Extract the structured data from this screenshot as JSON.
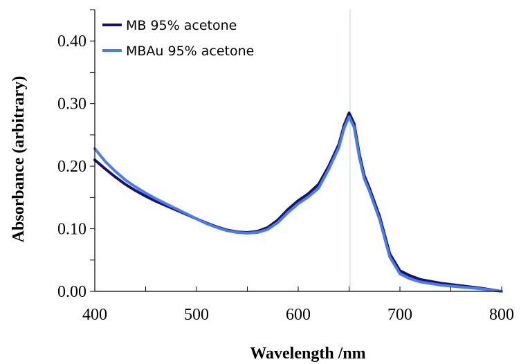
{
  "chart_data": {
    "type": "line",
    "xlabel": "Wavelength /nm",
    "ylabel": "Absorbance (arbitrary)",
    "xlim": [
      400,
      800
    ],
    "ylim": [
      0,
      0.45
    ],
    "x_ticks": [
      400,
      500,
      600,
      700,
      800
    ],
    "x_tick_labels": [
      "400",
      "500",
      "600",
      "700",
      "800"
    ],
    "y_ticks": [
      0,
      0.1,
      0.2,
      0.3,
      0.4
    ],
    "y_tick_labels": [
      "0.00",
      "0.10",
      "0.20",
      "0.30",
      "0.40"
    ],
    "x_minor_step": 50,
    "y_minor_step": 0.05,
    "grid": false,
    "legend_position": "top-left",
    "reference_line": {
      "x": 651,
      "color": "#b8d4e3"
    },
    "series": [
      {
        "name": "MB 95% acetone",
        "color": "#14146e",
        "x": [
          400,
          410,
          420,
          430,
          440,
          450,
          460,
          470,
          480,
          490,
          500,
          510,
          520,
          530,
          540,
          550,
          560,
          570,
          580,
          590,
          600,
          610,
          620,
          630,
          640,
          645,
          650,
          655,
          660,
          665,
          670,
          680,
          690,
          700,
          710,
          720,
          740,
          760,
          780,
          800
        ],
        "y": [
          0.21,
          0.196,
          0.183,
          0.171,
          0.161,
          0.152,
          0.144,
          0.137,
          0.13,
          0.123,
          0.116,
          0.109,
          0.103,
          0.098,
          0.095,
          0.094,
          0.096,
          0.102,
          0.114,
          0.131,
          0.145,
          0.156,
          0.171,
          0.2,
          0.235,
          0.265,
          0.285,
          0.268,
          0.22,
          0.185,
          0.165,
          0.12,
          0.06,
          0.033,
          0.025,
          0.019,
          0.013,
          0.009,
          0.005,
          0.0
        ]
      },
      {
        "name": "MBAu 95% acetone",
        "color": "#4a7cf0",
        "x": [
          400,
          410,
          420,
          430,
          440,
          450,
          460,
          470,
          480,
          490,
          500,
          510,
          520,
          530,
          540,
          550,
          560,
          570,
          580,
          590,
          600,
          610,
          620,
          630,
          640,
          645,
          650,
          655,
          660,
          665,
          670,
          680,
          690,
          700,
          710,
          720,
          740,
          760,
          780,
          800
        ],
        "y": [
          0.228,
          0.208,
          0.192,
          0.178,
          0.167,
          0.157,
          0.148,
          0.14,
          0.132,
          0.124,
          0.116,
          0.108,
          0.102,
          0.097,
          0.094,
          0.093,
          0.094,
          0.099,
          0.11,
          0.126,
          0.14,
          0.151,
          0.165,
          0.195,
          0.23,
          0.26,
          0.279,
          0.262,
          0.215,
          0.18,
          0.16,
          0.115,
          0.055,
          0.028,
          0.02,
          0.015,
          0.01,
          0.007,
          0.004,
          0.0
        ]
      }
    ]
  }
}
